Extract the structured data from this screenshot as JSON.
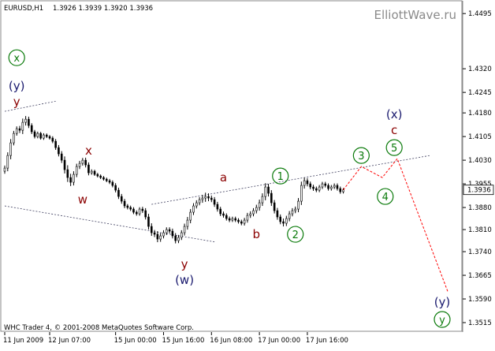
{
  "header": {
    "symbol": "EURUSD,H1",
    "ohlc": "1.3926 1.3939 1.3920 1.3936"
  },
  "watermark": "ElliottWave.ru",
  "footer": "WHC Trader 4, © 2001-2008 MetaQuotes Software Corp.",
  "colors": {
    "background": "#ffffff",
    "candle": "#000000",
    "trendline": "#404060",
    "forecast": "#ff0000",
    "wave_circle": "#0a7a0a",
    "label_red": "#8b0000",
    "label_navy": "#1a1a6e",
    "axis_text": "#000000",
    "watermark_text": "#8a8a8a"
  },
  "chart_data": {
    "type": "candlestick",
    "title": "",
    "xlabel": "",
    "ylabel": "",
    "ylim": [
      1.3485,
      1.4523
    ],
    "y_ticks": [
      "1.4495",
      "1.4320",
      "1.4245",
      "1.4180",
      "1.4105",
      "1.4030",
      "1.3955",
      "1.3880",
      "1.3810",
      "1.3740",
      "1.3665",
      "1.3590",
      "1.3515"
    ],
    "last_price": "1.3936",
    "x_tick_labels": [
      "11 Jun 2009",
      "12 Jun 07:00",
      "15 Jun 00:00",
      "15 Jun 16:00",
      "16 Jun 08:00",
      "17 Jun 00:00",
      "17 Jun 16:00"
    ],
    "x_tick_bars": [
      0,
      15,
      37,
      53,
      69,
      85,
      101
    ],
    "total_bars": 152,
    "close": [
      1.4005,
      1.4045,
      1.4085,
      1.4115,
      1.413,
      1.4125,
      1.415,
      1.416,
      1.414,
      1.412,
      1.4105,
      1.4115,
      1.41,
      1.411,
      1.4105,
      1.41,
      1.409,
      1.407,
      1.405,
      1.403,
      1.4,
      1.3975,
      1.396,
      1.3985,
      1.401,
      1.402,
      1.403,
      1.4015,
      1.399,
      1.3995,
      1.3985,
      1.398,
      1.3975,
      1.397,
      1.3965,
      1.396,
      1.395,
      1.3935,
      1.3915,
      1.39,
      1.3885,
      1.388,
      1.3875,
      1.3865,
      1.386,
      1.3875,
      1.387,
      1.385,
      1.382,
      1.38,
      1.3795,
      1.378,
      1.379,
      1.38,
      1.381,
      1.3805,
      1.379,
      1.3775,
      1.3785,
      1.38,
      1.382,
      1.384,
      1.3865,
      1.3885,
      1.3895,
      1.3905,
      1.391,
      1.3915,
      1.391,
      1.3905,
      1.389,
      1.3875,
      1.386,
      1.3855,
      1.3845,
      1.384,
      1.3845,
      1.384,
      1.3835,
      1.383,
      1.384,
      1.3855,
      1.386,
      1.387,
      1.388,
      1.3895,
      1.3915,
      1.3945,
      1.3925,
      1.3895,
      1.387,
      1.385,
      1.3835,
      1.383,
      1.3845,
      1.386,
      1.387,
      1.3875,
      1.39,
      1.395,
      1.3965,
      1.3955,
      1.3945,
      1.394,
      1.3935,
      1.3945,
      1.3955,
      1.395,
      1.394,
      1.3945,
      1.395,
      1.394,
      1.393,
      1.3936
    ],
    "spread": [
      0.002,
      0.0025,
      0.003,
      0.002,
      0.0018,
      0.0022,
      0.003,
      0.0025,
      0.002,
      0.0018,
      0.0015,
      0.0014,
      0.0012,
      0.0014,
      0.0012,
      0.0012,
      0.0015,
      0.0018,
      0.002,
      0.0022,
      0.003,
      0.0035,
      0.003,
      0.0025,
      0.0022,
      0.002,
      0.0018,
      0.002,
      0.002,
      0.0015,
      0.0012,
      0.0012,
      0.0012,
      0.0012,
      0.0012,
      0.0014,
      0.0015,
      0.0018,
      0.002,
      0.002,
      0.0018,
      0.0015,
      0.0015,
      0.0015,
      0.0015,
      0.0015,
      0.0018,
      0.002,
      0.0025,
      0.0025,
      0.0022,
      0.0025,
      0.0022,
      0.002,
      0.0018,
      0.0018,
      0.002,
      0.0022,
      0.002,
      0.002,
      0.0022,
      0.0025,
      0.0025,
      0.0022,
      0.002,
      0.002,
      0.0025,
      0.003,
      0.0025,
      0.002,
      0.002,
      0.002,
      0.0018,
      0.0018,
      0.0016,
      0.0016,
      0.0015,
      0.0015,
      0.0015,
      0.0016,
      0.0018,
      0.002,
      0.002,
      0.002,
      0.0022,
      0.0025,
      0.0025,
      0.003,
      0.0025,
      0.0025,
      0.0022,
      0.0022,
      0.002,
      0.0025,
      0.0022,
      0.0022,
      0.002,
      0.002,
      0.0025,
      0.003,
      0.0025,
      0.002,
      0.0018,
      0.0018,
      0.0016,
      0.0016,
      0.0016,
      0.0016,
      0.0016,
      0.0016,
      0.0016,
      0.0016,
      0.0016,
      0.0014
    ],
    "trendlines": [
      {
        "from": [
          0,
          1.4185
        ],
        "to": [
          17,
          1.4217
        ]
      },
      {
        "from": [
          0,
          1.3885
        ],
        "to": [
          70,
          1.3771
        ]
      },
      {
        "from": [
          49,
          1.389
        ],
        "to": [
          142,
          1.4045
        ]
      }
    ],
    "forecast_path": [
      [
        113,
        1.3936
      ],
      [
        119,
        1.401
      ],
      [
        126,
        1.3975
      ],
      [
        131,
        1.4035
      ],
      [
        148,
        1.361
      ]
    ],
    "wave_labels": [
      {
        "text": "x",
        "bar": 4,
        "price": 1.4355,
        "style": "circle"
      },
      {
        "text": "(y)",
        "bar": 4,
        "price": 1.4265,
        "style": "navy"
      },
      {
        "text": "y",
        "bar": 4,
        "price": 1.4215,
        "style": "red"
      },
      {
        "text": "x",
        "bar": 28,
        "price": 1.406,
        "style": "red"
      },
      {
        "text": "w",
        "bar": 26,
        "price": 1.3905,
        "style": "red"
      },
      {
        "text": "y",
        "bar": 60,
        "price": 1.37,
        "style": "red"
      },
      {
        "text": "(w)",
        "bar": 60,
        "price": 1.365,
        "style": "navy"
      },
      {
        "text": "a",
        "bar": 73,
        "price": 1.3975,
        "style": "red"
      },
      {
        "text": "b",
        "bar": 84,
        "price": 1.3795,
        "style": "red"
      },
      {
        "text": "1",
        "bar": 92,
        "price": 1.398,
        "style": "circle"
      },
      {
        "text": "2",
        "bar": 97,
        "price": 1.3795,
        "style": "circle"
      },
      {
        "text": "3",
        "bar": 119,
        "price": 1.4045,
        "style": "circle"
      },
      {
        "text": "4",
        "bar": 127,
        "price": 1.3915,
        "style": "circle"
      },
      {
        "text": "(x)",
        "bar": 130,
        "price": 1.4175,
        "style": "navy"
      },
      {
        "text": "c",
        "bar": 130,
        "price": 1.4125,
        "style": "red"
      },
      {
        "text": "5",
        "bar": 130,
        "price": 1.407,
        "style": "circle"
      },
      {
        "text": "(y)",
        "bar": 146,
        "price": 1.358,
        "style": "navy"
      },
      {
        "text": "y",
        "bar": 146,
        "price": 1.3525,
        "style": "circle"
      }
    ]
  }
}
